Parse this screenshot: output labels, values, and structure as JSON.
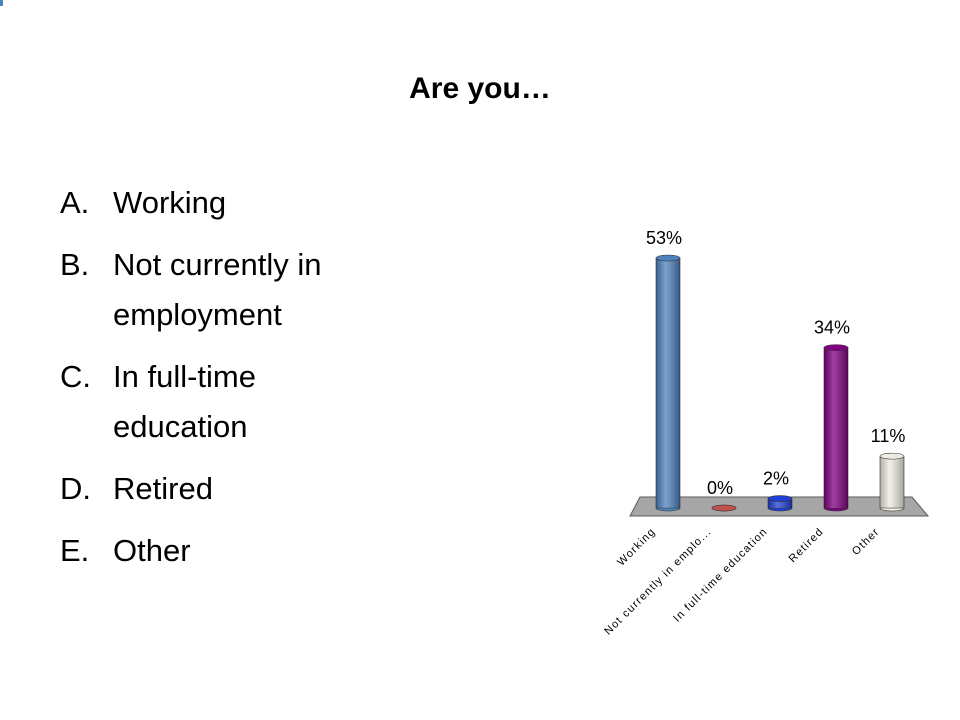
{
  "slide": {
    "title": "Are you…",
    "options": [
      {
        "letter": "A.",
        "text": "Working"
      },
      {
        "letter": "B.",
        "text": "Not currently in employment"
      },
      {
        "letter": "C.",
        "text": "In full-time education"
      },
      {
        "letter": "D.",
        "text": "Retired"
      },
      {
        "letter": "E.",
        "text": "Other"
      }
    ]
  },
  "chart_data": {
    "type": "bar",
    "categories": [
      "Working",
      "Not currently in emplo...",
      "In full-time education",
      "Retired",
      "Other"
    ],
    "values": [
      53,
      0,
      2,
      34,
      11
    ],
    "value_labels": [
      "53%",
      "0%",
      "2%",
      "34%",
      "11%"
    ],
    "colors": [
      "#4f81bd",
      "#c0504d",
      "#1f3fd6",
      "#800080",
      "#eeece1"
    ]
  }
}
